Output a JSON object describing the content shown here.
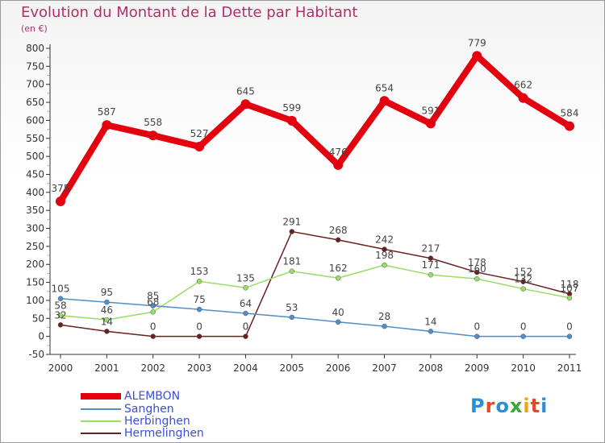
{
  "title": "Evolution du Montant de la Dette par Habitant",
  "unit": "(en €)",
  "logo": {
    "text": "Proxiti",
    "letters": [
      "P",
      "r",
      "o",
      "x",
      "i",
      "t",
      "i"
    ],
    "colors": [
      "#2b8fd6",
      "#e9452b",
      "#2b8fd6",
      "#3aa63a",
      "#f2a11a",
      "#e9452b",
      "#2b8fd6"
    ]
  },
  "chart_data": {
    "type": "line",
    "x": [
      "2000",
      "2001",
      "2002",
      "2003",
      "2004",
      "2005",
      "2006",
      "2007",
      "2008",
      "2009",
      "2010",
      "2011"
    ],
    "ylim": [
      -50,
      800
    ],
    "yticks": [
      -50,
      0,
      50,
      100,
      150,
      200,
      250,
      300,
      350,
      400,
      450,
      500,
      550,
      600,
      650,
      700,
      750,
      800
    ],
    "grid": false,
    "legend_position": "bottom-left",
    "series": [
      {
        "name": "ALEMBON",
        "color": "#e3000f",
        "values": [
          375,
          587,
          558,
          527,
          645,
          599,
          476,
          654,
          591,
          779,
          662,
          584
        ],
        "labels": [
          "375",
          "587",
          "558",
          "527",
          "645",
          "599",
          "476",
          "654",
          "591",
          "779",
          "662",
          "584"
        ]
      },
      {
        "name": "Sanghen",
        "color": "#4f8fc5",
        "values": [
          105,
          95,
          85,
          75,
          64,
          53,
          40,
          28,
          14,
          0,
          0,
          0
        ],
        "labels": [
          "105",
          "95",
          "85",
          "75",
          "64",
          "53",
          "40",
          "28",
          "14",
          "0",
          "0",
          "0"
        ]
      },
      {
        "name": "Herbinghen",
        "color": "#99dd66",
        "values": [
          58,
          46,
          68,
          153,
          135,
          181,
          162,
          198,
          171,
          160,
          132,
          107
        ],
        "labels": [
          "58",
          "46",
          "68",
          "153",
          "135",
          "181",
          "162",
          "198",
          "171",
          "160",
          "132",
          "107"
        ]
      },
      {
        "name": "Hermelinghen",
        "color": "#6b1f1f",
        "values": [
          32,
          14,
          0,
          0,
          0,
          291,
          268,
          242,
          217,
          178,
          152,
          118
        ],
        "labels": [
          "32",
          "14",
          "0",
          "0",
          "0",
          "291",
          "268",
          "242",
          "217",
          "178",
          "152",
          "118"
        ]
      }
    ]
  }
}
